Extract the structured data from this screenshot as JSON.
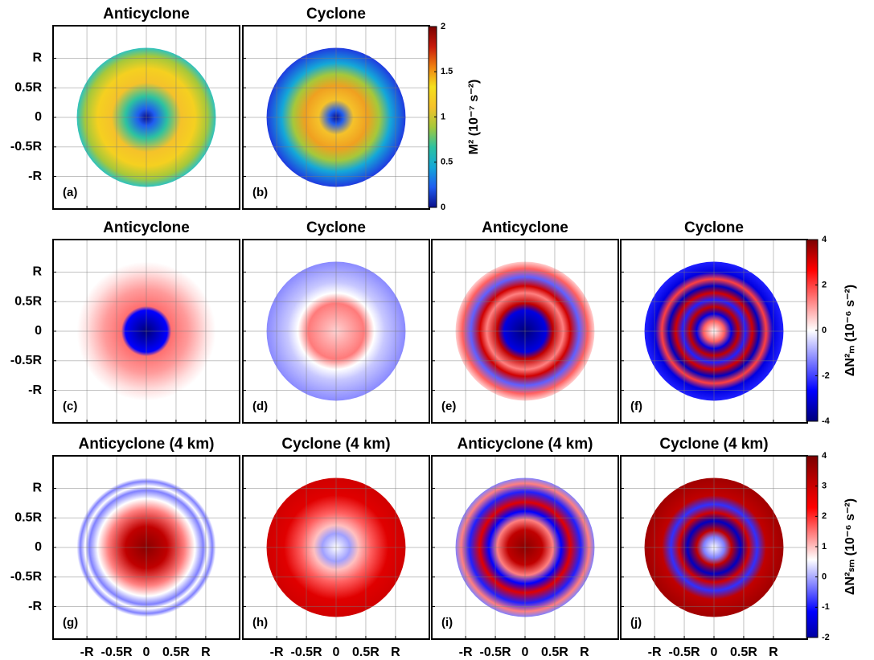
{
  "chart_data": {
    "type": "heatmap",
    "xlim": [
      -1.57,
      1.57
    ],
    "ylim": [
      -1.55,
      1.55
    ],
    "xticks": [
      {
        "value": -1,
        "label": "-R"
      },
      {
        "value": -0.5,
        "label": "-0.5R"
      },
      0,
      {
        "value": 0.5,
        "label": "0.5R"
      },
      {
        "value": 1,
        "label": "R"
      }
    ],
    "yticks": [
      {
        "value": 1,
        "label": "R"
      },
      {
        "value": 0.5,
        "label": "0.5R"
      },
      0,
      {
        "value": -0.5,
        "label": "-0.5R"
      },
      {
        "value": -1,
        "label": "-R"
      }
    ],
    "grid": true,
    "colorbars": [
      {
        "label": "M² (10⁻⁷ s⁻²)",
        "lim": [
          0,
          2
        ],
        "ticks": [
          0,
          0.5,
          1,
          1.5,
          2
        ],
        "colors": [
          "#0a0f8c",
          "#1f5cf0",
          "#14a8d8",
          "#2dc2a0",
          "#a6c83a",
          "#f5c22a",
          "#f5e01c",
          "#f08010",
          "#c81a0a",
          "#7a0000"
        ]
      },
      {
        "label": "ΔN²ₘ (10⁻⁶ s⁻²)",
        "lim": [
          -4,
          4
        ],
        "ticks": [
          -4,
          -2,
          0,
          2,
          4
        ],
        "colors": [
          "#00007a",
          "#0000ff",
          "#8080ff",
          "#ffffff",
          "#ff8080",
          "#ff0000",
          "#7a0000"
        ]
      },
      {
        "label": "ΔN²ₛₘ (10⁻⁶ s⁻²)",
        "lim": [
          -2,
          4
        ],
        "ticks": [
          -2,
          -1,
          0,
          1,
          2,
          3,
          4
        ],
        "colors": [
          "#0000a0",
          "#0000ff",
          "#8080ff",
          "#ffffff",
          "#ff8080",
          "#ff0000",
          "#c00000",
          "#7a0000"
        ]
      }
    ],
    "panels": [
      {
        "title": "Anticyclone",
        "label": "(a)"
      },
      {
        "title": "Cyclone",
        "label": "(b)"
      },
      {
        "title": "Anticyclone",
        "label": "(c)"
      },
      {
        "title": "Cyclone",
        "label": "(d)"
      },
      {
        "title": "Anticyclone",
        "label": "(e)"
      },
      {
        "title": "Cyclone",
        "label": "(f)"
      },
      {
        "title": "Anticyclone (4 km)",
        "label": "(g)"
      },
      {
        "title": "Cyclone (4 km)",
        "label": "(h)"
      },
      {
        "title": "Anticyclone (4 km)",
        "label": "(i)"
      },
      {
        "title": "Cyclone (4 km)",
        "label": "(j)"
      }
    ]
  }
}
